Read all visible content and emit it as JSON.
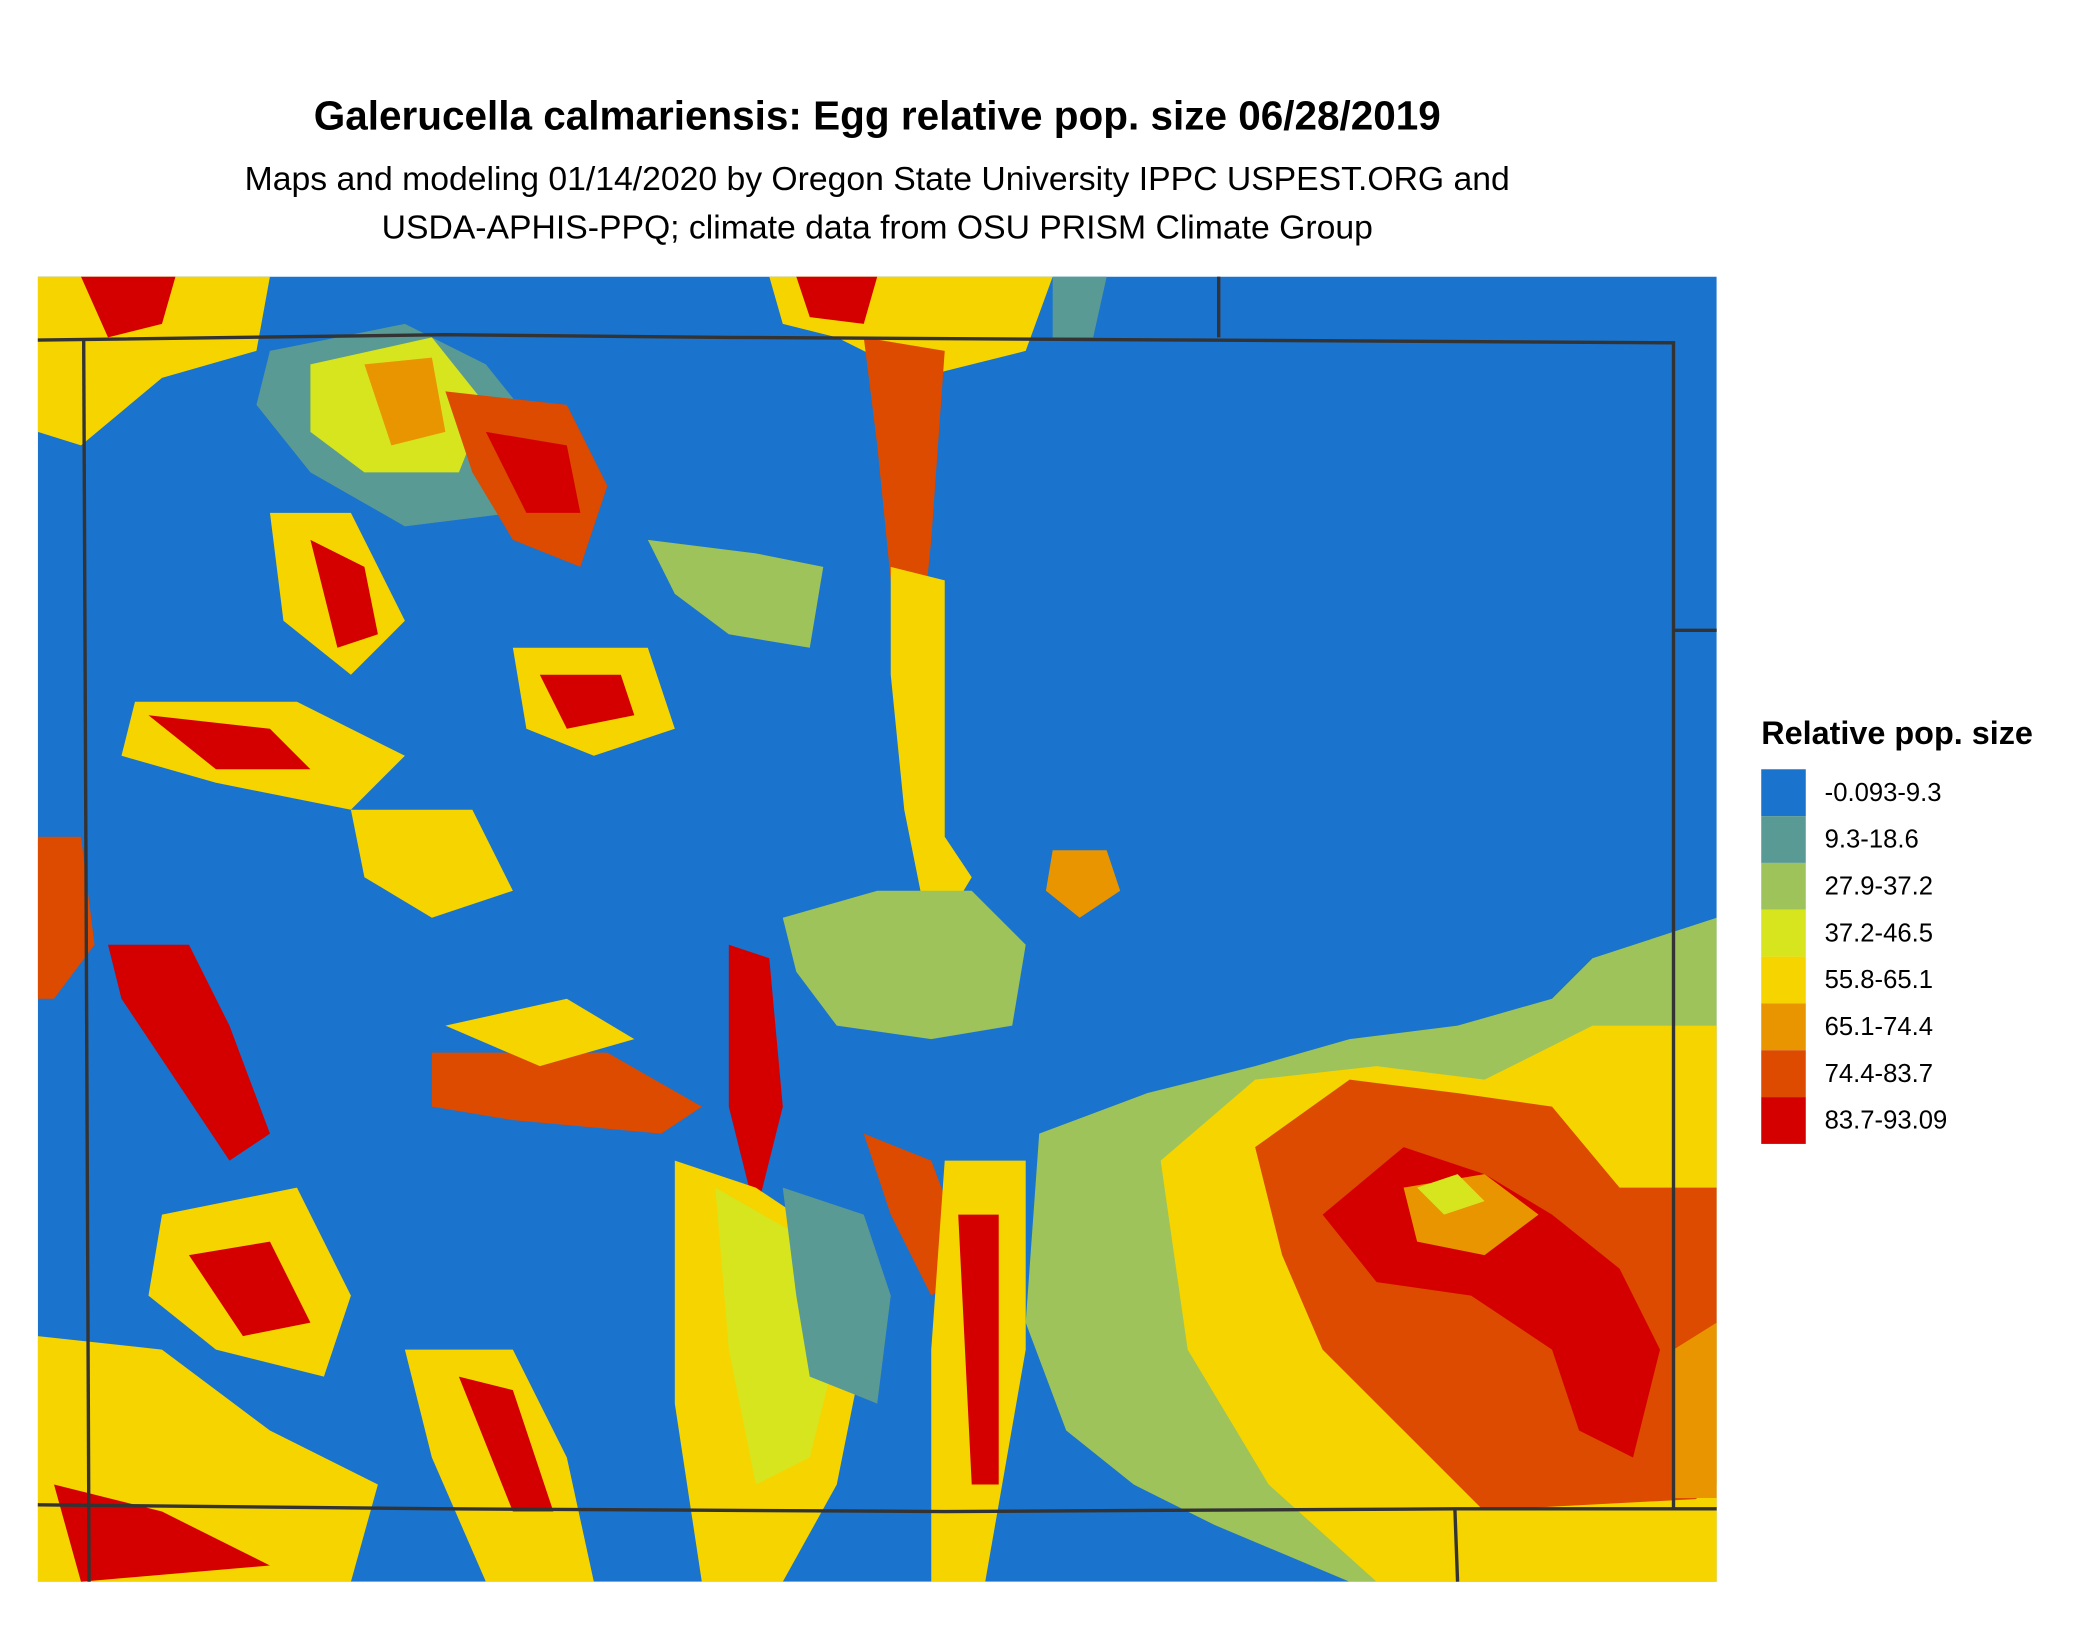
{
  "map": {
    "title": "Galerucella calmariensis: Egg relative pop. size 06/28/2019",
    "subtitle": [
      "Maps and modeling 01/14/2020 by Oregon State University IPPC USPEST.ORG and",
      "USDA-APHIS-PPQ; climate data from OSU PRISM Climate Group"
    ],
    "legend": {
      "title": "Relative pop. size",
      "items": [
        {
          "label": "-0.093-9.3",
          "color": "#1a73cc"
        },
        {
          "label": "9.3-18.6",
          "color": "#5a9a94"
        },
        {
          "label": "27.9-37.2",
          "color": "#9dc35a"
        },
        {
          "label": "37.2-46.5",
          "color": "#d7e51e"
        },
        {
          "label": "55.8-65.1",
          "color": "#f5d400"
        },
        {
          "label": "65.1-74.4",
          "color": "#e89500"
        },
        {
          "label": "74.4-83.7",
          "color": "#dc4b00"
        },
        {
          "label": "83.7-93.09",
          "color": "#d40000"
        }
      ]
    }
  }
}
